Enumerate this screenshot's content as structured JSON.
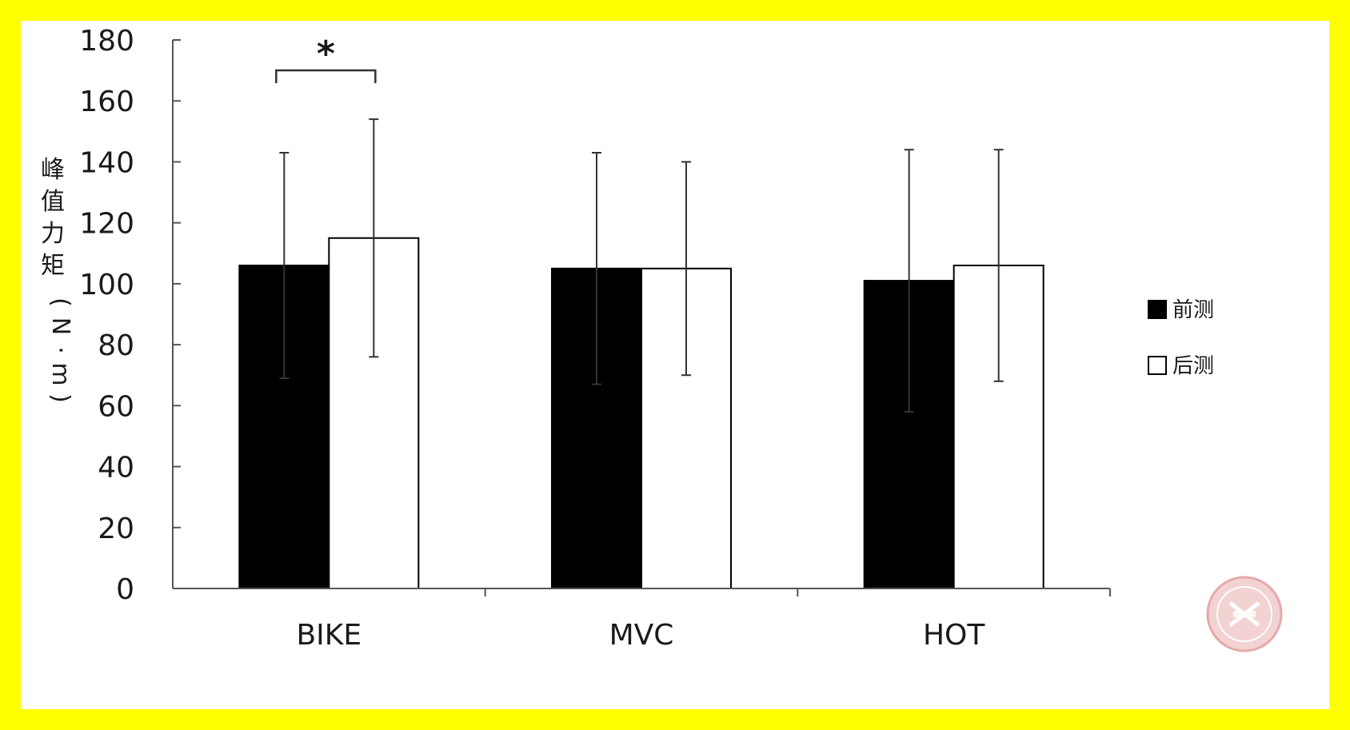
{
  "chart_data": {
    "type": "bar",
    "categories": [
      "BIKE",
      "MVC",
      "HOT"
    ],
    "series": [
      {
        "name": "前测",
        "values": [
          106,
          105,
          101
        ],
        "errors": [
          37,
          38,
          43
        ],
        "fill": "#000000"
      },
      {
        "name": "后测",
        "values": [
          115,
          105,
          106
        ],
        "errors": [
          39,
          35,
          38
        ],
        "fill": "#ffffff"
      }
    ],
    "title": "",
    "xlabel": "",
    "ylabel": "峰值力矩(N·m)",
    "ylabel_chars": [
      "峰",
      "值",
      "力",
      "矩",
      "(",
      "N",
      "·",
      "m",
      ")"
    ],
    "ylim": [
      0,
      180
    ],
    "yticks": [
      0,
      20,
      40,
      60,
      80,
      100,
      120,
      140,
      160,
      180
    ],
    "grid": false,
    "legend_position": "right",
    "annotations": [
      {
        "type": "significance",
        "category": "BIKE",
        "text": "*"
      }
    ]
  },
  "colors": {
    "background": "#ffff00",
    "plot_bg": "#ffffff",
    "axis": "#555555"
  },
  "watermark": {
    "name": "seal-logo",
    "color": "#e8b4b4"
  }
}
